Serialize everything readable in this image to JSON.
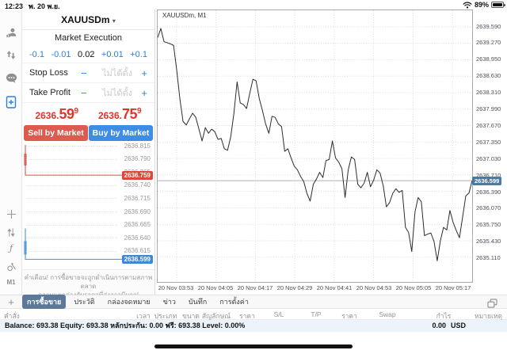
{
  "colors": {
    "accent_blue": "#2f7fe0",
    "sell_red": "#dd5a4e",
    "buy_blue": "#3f8ce4",
    "price_red": "#e0352b",
    "tab_selected": "#5d7999",
    "ask_badge": "#e0453a",
    "bid_badge": "#3e87d6",
    "chart_badge": "#4a7aa6"
  },
  "status_bar": {
    "time": "12:23",
    "date": "พ. 20 พ.ย.",
    "battery": "89%",
    "icons": [
      "wifi-icon",
      "battery-icon"
    ]
  },
  "left_rail": {
    "top_icons": [
      "accounts-icon",
      "trade-icon",
      "chat-icon",
      "new-order-icon"
    ],
    "bottom_icons": [
      "crosshair-icon",
      "arrows-updown-icon",
      "indicators-icon",
      "objects-icon"
    ],
    "timeframe": "M1"
  },
  "trade_panel": {
    "symbol": "XAUUSDm",
    "symbol_caret": "▼",
    "mode": "Market Execution",
    "volume": {
      "dec_big": "-0.1",
      "dec_small": "-0.01",
      "value": "0.02",
      "inc_small": "+0.01",
      "inc_big": "+0.1"
    },
    "controls": {
      "minus": "−",
      "plus": "+"
    },
    "stop_loss": {
      "label": "Stop Loss",
      "value": "ไม่ได้ตั้ง"
    },
    "take_profit": {
      "label": "Take Profit",
      "value": "ไม่ได้ตั้ง"
    },
    "bid": {
      "prefix": "2636.",
      "pips": "59",
      "sup": "9"
    },
    "ask": {
      "prefix": "2636.",
      "pips": "75",
      "sup": "9"
    },
    "sell_label": "Sell by Market",
    "buy_label": "Buy by Market",
    "tick_scale": [
      "2636.815",
      "2636.790",
      "2636.765",
      "2636.740",
      "2636.715",
      "2636.690",
      "2636.665",
      "2636.640",
      "2636.615"
    ],
    "ask_badge": "2636.759",
    "bid_badge": "2636.599",
    "warning_line1": "คำเตือน! การซื้อขายจะถูกดำเนินการตามสภาพตลาด",
    "warning_line2": "ความแตกต่างกับราคาที่ส่งอาจมีมาก!"
  },
  "chart_data": {
    "type": "line",
    "title": "XAUUSDm, M1",
    "symbol": "XAUUSDm",
    "timeframe": "M1",
    "x_ticks": [
      "20 Nov 03:53",
      "20 Nov 04:05",
      "20 Nov 04:17",
      "20 Nov 04:29",
      "20 Nov 04:41",
      "20 Nov 04:53",
      "20 Nov 05:05",
      "20 Nov 05:17"
    ],
    "y_ticks": [
      "2639.590",
      "2639.270",
      "2638.950",
      "2638.630",
      "2638.310",
      "2637.990",
      "2637.670",
      "2637.350",
      "2637.030",
      "2636.710",
      "2636.390",
      "2636.070",
      "2635.750",
      "2635.430",
      "2635.110"
    ],
    "y_tick_step": 0.32,
    "ylim": [
      2634.65,
      2639.91
    ],
    "current_price": 2636.599,
    "current_price_label": "2636.599",
    "grid": "dotted",
    "values": [
      2639.38,
      2639.56,
      2639.3,
      2639.28,
      2639.26,
      2639.23,
      2638.75,
      2638.19,
      2637.75,
      2637.68,
      2637.8,
      2637.91,
      2637.83,
      2637.6,
      2637.37,
      2637.63,
      2637.52,
      2637.6,
      2637.55,
      2637.4,
      2637.42,
      2637.22,
      2637.19,
      2637.45,
      2637.9,
      2638.52,
      2638.11,
      2638.08,
      2638.0,
      2638.3,
      2638.57,
      2638.54,
      2638.19,
      2637.96,
      2637.7,
      2637.52,
      2637.85,
      2637.83,
      2637.7,
      2637.65,
      2637.17,
      2637.22,
      2637.04,
      2636.88,
      2636.81,
      2636.68,
      2636.58,
      2636.35,
      2636.2,
      2636.53,
      2636.63,
      2636.76,
      2636.66,
      2636.99,
      2637.01,
      2637.37,
      2637.04,
      2636.96,
      2636.83,
      2636.27,
      2636.81,
      2637.06,
      2637.01,
      2636.53,
      2636.46,
      2636.55,
      2636.76,
      2636.48,
      2636.61,
      2636.81,
      2636.75,
      2636.5,
      2636.09,
      2636.17,
      2636.35,
      2636.44,
      2636.37,
      2636.41,
      2635.69,
      2635.59,
      2635.22,
      2635.99,
      2636.27,
      2636.19,
      2635.53,
      2635.56,
      2635.58,
      2635.42,
      2635.04,
      2635.43,
      2635.69,
      2635.64,
      2636.02,
      2635.79,
      2635.63,
      2635.49,
      2635.89,
      2636.3,
      2636.36,
      2636.6
    ]
  },
  "tabs": {
    "items": [
      {
        "label": "การซื้อขาย",
        "selected": true
      },
      {
        "label": "ประวัติ",
        "selected": false
      },
      {
        "label": "กล่องจดหมาย",
        "selected": false
      },
      {
        "label": "ข่าว",
        "selected": false
      },
      {
        "label": "บันทึก",
        "selected": false
      },
      {
        "label": "การตั้งค่า",
        "selected": false
      }
    ]
  },
  "table": {
    "headers": [
      "คำสั่ง",
      "เวลา",
      "ประเภท",
      "ขนาด",
      "สัญลักษณ์",
      "ราคา",
      "S/L",
      "T/P",
      "ราคา",
      "Swap",
      "กำไร",
      "หมายเหตุ"
    ]
  },
  "account_bar": {
    "summary": "Balance: 693.38 Equity: 693.38 หลักประกัน: 0.00 ฟรี: 693.38 Level: 0.00%",
    "profit": "0.00",
    "currency": "USD"
  }
}
